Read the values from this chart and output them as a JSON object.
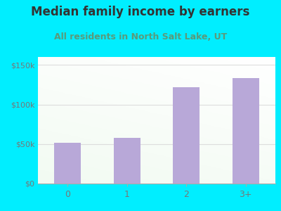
{
  "categories": [
    "0",
    "1",
    "2",
    "3+"
  ],
  "values": [
    52000,
    58000,
    122000,
    133000
  ],
  "bar_color": "#b8a8d8",
  "title": "Median family income by earners",
  "subtitle": "All residents in North Salt Lake, UT",
  "title_color": "#333333",
  "subtitle_color": "#5a9a7a",
  "outer_bg": "#00eeff",
  "yticks": [
    0,
    50000,
    100000,
    150000
  ],
  "ytick_labels": [
    "$0",
    "$50k",
    "$100k",
    "$150k"
  ],
  "ylim": [
    0,
    160000
  ],
  "grid_color": "#dddddd",
  "tick_color": "#777777",
  "title_fontsize": 12,
  "subtitle_fontsize": 9
}
